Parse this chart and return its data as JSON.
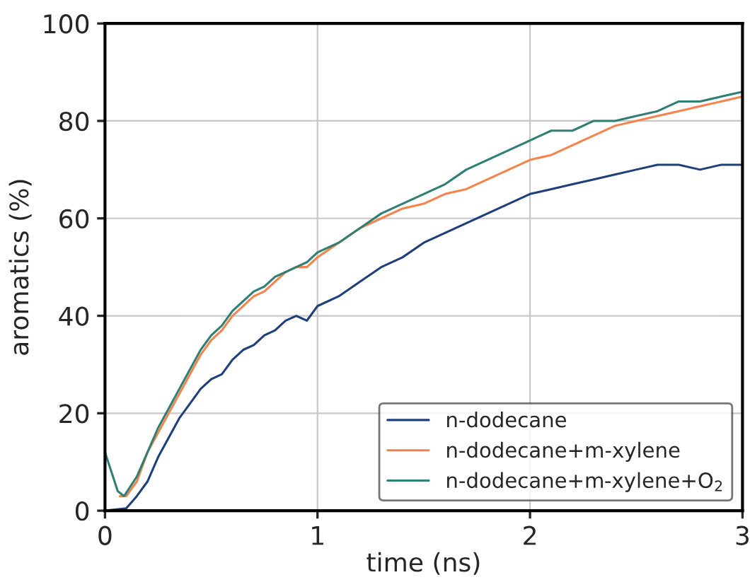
{
  "chart_data": {
    "type": "line",
    "xlabel": "time (ns)",
    "ylabel": "aromatics (%)",
    "xlim": [
      0,
      3
    ],
    "ylim": [
      0,
      100
    ],
    "xticks": [
      0,
      1,
      2,
      3
    ],
    "yticks": [
      0,
      20,
      40,
      60,
      80,
      100
    ],
    "grid": true,
    "legend": "bottom right",
    "marker": "none",
    "line_style": "solid",
    "series": [
      {
        "name": "n-dodecane",
        "color": "#1f3f7a",
        "x": [
          0,
          0.1,
          0.15,
          0.2,
          0.25,
          0.3,
          0.35,
          0.4,
          0.45,
          0.5,
          0.55,
          0.6,
          0.65,
          0.7,
          0.75,
          0.8,
          0.85,
          0.9,
          0.95,
          1.0,
          1.1,
          1.2,
          1.3,
          1.4,
          1.5,
          1.6,
          1.7,
          1.8,
          1.9,
          2.0,
          2.1,
          2.2,
          2.3,
          2.4,
          2.5,
          2.6,
          2.7,
          2.8,
          2.9,
          3.0
        ],
        "values": [
          0,
          0.5,
          3,
          6,
          11,
          15,
          19,
          22,
          25,
          27,
          28,
          31,
          33,
          34,
          36,
          37,
          39,
          40,
          39,
          42,
          44,
          47,
          50,
          52,
          55,
          57,
          59,
          61,
          63,
          65,
          66,
          67,
          68,
          69,
          70,
          71,
          71,
          70,
          71,
          71
        ]
      },
      {
        "name": "n-dodecane+m-xylene",
        "color": "#f4844c",
        "x": [
          0.07,
          0.1,
          0.15,
          0.2,
          0.25,
          0.3,
          0.35,
          0.4,
          0.45,
          0.5,
          0.55,
          0.6,
          0.65,
          0.7,
          0.75,
          0.8,
          0.85,
          0.9,
          0.95,
          1.0,
          1.1,
          1.2,
          1.3,
          1.4,
          1.5,
          1.6,
          1.7,
          1.8,
          1.9,
          2.0,
          2.1,
          2.2,
          2.3,
          2.4,
          2.5,
          2.6,
          2.7,
          2.8,
          2.9,
          3.0
        ],
        "values": [
          3,
          3,
          6,
          12,
          16,
          20,
          24,
          28,
          32,
          35,
          37,
          40,
          42,
          44,
          45,
          47,
          49,
          50,
          50,
          52,
          55,
          58,
          60,
          62,
          63,
          65,
          66,
          68,
          70,
          72,
          73,
          75,
          77,
          79,
          80,
          81,
          82,
          83,
          84,
          85
        ]
      },
      {
        "name": "n-dodecane+m-xylene+O$_{2}$",
        "color": "#2f7f74",
        "x": [
          0,
          0.03,
          0.06,
          0.09,
          0.12,
          0.15,
          0.2,
          0.25,
          0.3,
          0.35,
          0.4,
          0.45,
          0.5,
          0.55,
          0.6,
          0.65,
          0.7,
          0.75,
          0.8,
          0.85,
          0.9,
          0.95,
          1.0,
          1.1,
          1.2,
          1.3,
          1.4,
          1.5,
          1.6,
          1.7,
          1.8,
          1.9,
          2.0,
          2.1,
          2.2,
          2.3,
          2.4,
          2.5,
          2.6,
          2.7,
          2.8,
          2.9,
          3.0
        ],
        "values": [
          12,
          8,
          4,
          3,
          5,
          7,
          12,
          17,
          21,
          25,
          29,
          33,
          36,
          38,
          41,
          43,
          45,
          46,
          48,
          49,
          50,
          51,
          53,
          55,
          58,
          61,
          63,
          65,
          67,
          70,
          72,
          74,
          76,
          78,
          78,
          80,
          80,
          81,
          82,
          84,
          84,
          85,
          86
        ]
      }
    ]
  }
}
